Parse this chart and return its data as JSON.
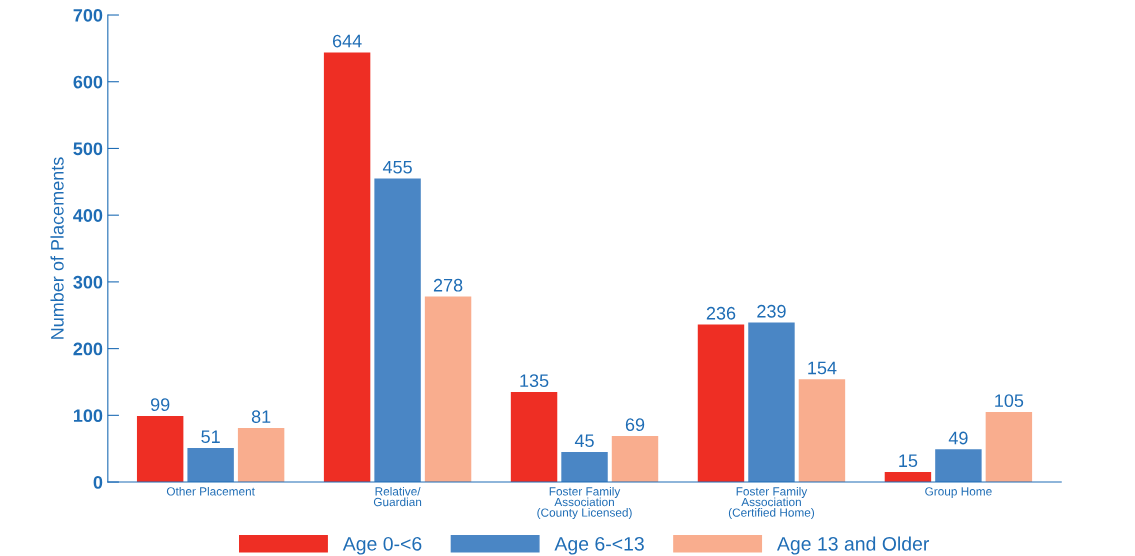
{
  "chart_data": {
    "type": "bar",
    "ylabel": "Number of Placements",
    "categories": [
      "Other Placement",
      "Relative/\nGuardian",
      "Foster Family\nAssociation\n(County Licensed)",
      "Foster Family\nAssociation\n(Certified Home)",
      "Group Home"
    ],
    "series": [
      {
        "name": "Age 0-<6",
        "color": "#ee2e24",
        "values": [
          99,
          644,
          135,
          236,
          15
        ]
      },
      {
        "name": "Age 6-<13",
        "color": "#4a86c5",
        "values": [
          51,
          455,
          45,
          239,
          49
        ]
      },
      {
        "name": "Age 13 and Older",
        "color": "#f9ad8e",
        "values": [
          81,
          278,
          69,
          154,
          105
        ]
      }
    ],
    "ylim": [
      0,
      700
    ],
    "yticks": [
      0,
      100,
      200,
      300,
      400,
      500,
      600,
      700
    ],
    "data_labels": true,
    "legend": "bottom",
    "grid": false
  }
}
